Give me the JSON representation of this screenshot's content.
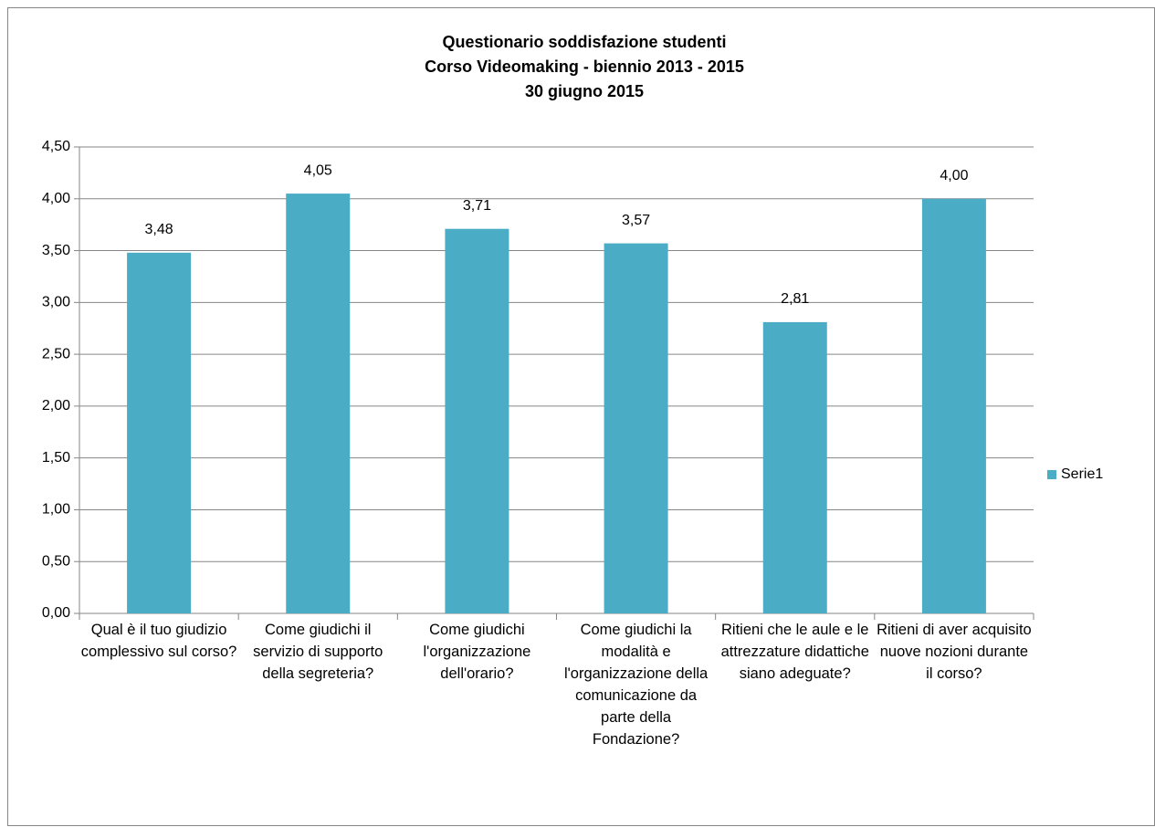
{
  "chart_data": {
    "type": "bar",
    "title": [
      "Questionario soddisfazione studenti",
      "Corso Videomaking - biennio 2013 - 2015",
      "30 giugno 2015"
    ],
    "categories": [
      "Qual è il tuo giudizio complessivo sul corso?",
      "Come giudichi il servizio di supporto della segreteria?",
      "Come giudichi l'organizzazione dell'orario?",
      "Come giudichi la modalità e l'organizzazione della comunicazione da parte della Fondazione?",
      "Ritieni che le aule e le attrezzature didattiche siano adeguate?",
      "Ritieni di aver acquisito nuove nozioni durante il corso?"
    ],
    "series": [
      {
        "name": "Serie1",
        "color": "#4bacc6",
        "values": [
          3.48,
          4.05,
          3.71,
          3.57,
          2.81,
          4.0
        ],
        "value_labels": [
          "3,48",
          "4,05",
          "3,71",
          "3,57",
          "2,81",
          "4,00"
        ]
      }
    ],
    "ylim": [
      0,
      4.5
    ],
    "yticks": [
      {
        "value": 0,
        "label": "0,00"
      },
      {
        "value": 0.5,
        "label": "0,50"
      },
      {
        "value": 1,
        "label": "1,00"
      },
      {
        "value": 1.5,
        "label": "1,50"
      },
      {
        "value": 2,
        "label": "2,00"
      },
      {
        "value": 2.5,
        "label": "2,50"
      },
      {
        "value": 3,
        "label": "3,00"
      },
      {
        "value": 3.5,
        "label": "3,50"
      },
      {
        "value": 4,
        "label": "4,00"
      },
      {
        "value": 4.5,
        "label": "4,50"
      }
    ],
    "grid": true,
    "legend": "right"
  }
}
